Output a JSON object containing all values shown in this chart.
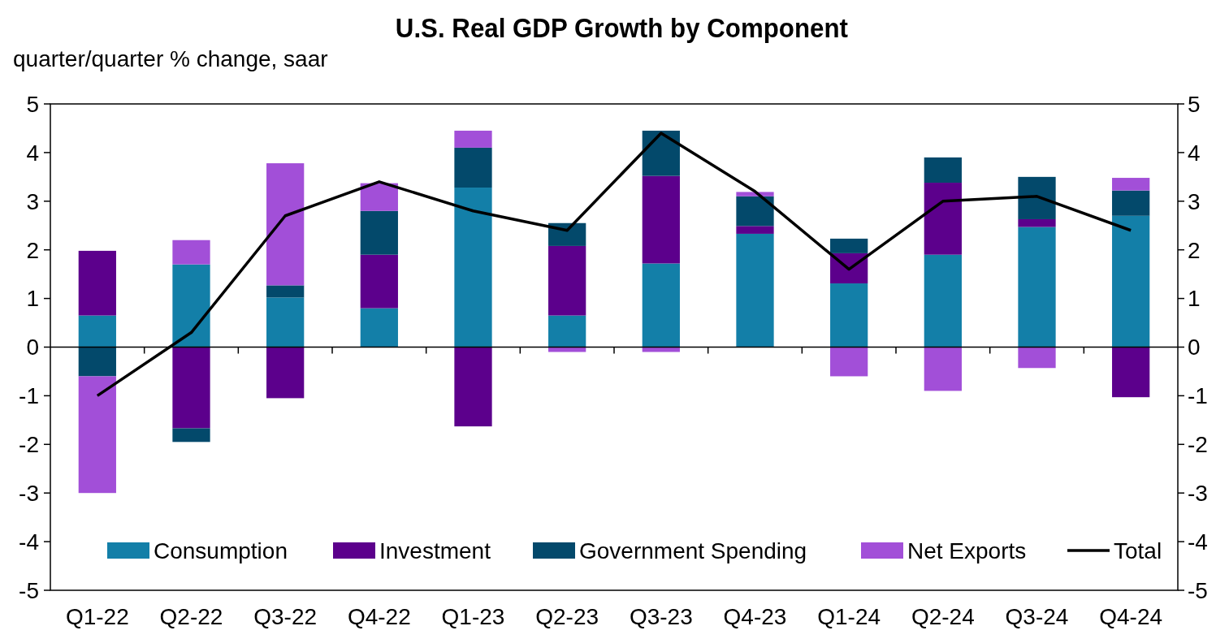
{
  "chart_data": {
    "type": "bar",
    "title": "U.S. Real GDP Growth by Component",
    "ylabel": "quarter/quarter % change, saar",
    "categories": [
      "Q1-22",
      "Q2-22",
      "Q3-22",
      "Q4-22",
      "Q1-23",
      "Q2-23",
      "Q3-23",
      "Q4-23",
      "Q1-24",
      "Q2-24",
      "Q3-24",
      "Q4-24"
    ],
    "stacked": true,
    "series": [
      {
        "name": "Consumption",
        "color": "#137fa8",
        "values": [
          0.65,
          1.7,
          1.02,
          0.8,
          3.28,
          0.65,
          1.72,
          2.33,
          1.31,
          1.9,
          2.47,
          2.7
        ]
      },
      {
        "name": "Investment",
        "color": "#5c008c",
        "values": [
          1.33,
          -1.67,
          -1.05,
          1.1,
          -1.63,
          1.43,
          1.8,
          0.16,
          0.62,
          1.48,
          0.16,
          -1.03
        ]
      },
      {
        "name": "Government Spending",
        "color": "#03496b",
        "values": [
          -0.6,
          -0.28,
          0.25,
          0.9,
          0.82,
          0.47,
          0.93,
          0.61,
          0.3,
          0.52,
          0.87,
          0.52
        ]
      },
      {
        "name": "Net Exports",
        "color": "#a24fd8",
        "values": [
          -2.4,
          0.5,
          2.51,
          0.57,
          0.35,
          -0.1,
          -0.1,
          0.09,
          -0.6,
          -0.9,
          -0.43,
          0.26
        ]
      },
      {
        "name": "Total",
        "type": "line",
        "color": "#000000",
        "values": [
          -1.0,
          0.3,
          2.7,
          3.4,
          2.8,
          2.4,
          4.4,
          3.2,
          1.6,
          3.0,
          3.1,
          2.4
        ]
      }
    ],
    "ylim": [
      -5,
      5
    ],
    "yticks": [
      -5,
      -4,
      -3,
      -2,
      -1,
      0,
      1,
      2,
      3,
      4,
      5
    ],
    "y2lim": [
      -5,
      5
    ],
    "y2ticks": [
      -5,
      -4,
      -3,
      -2,
      -1,
      0,
      1,
      2,
      3,
      4,
      5
    ],
    "legend": "bottom"
  }
}
